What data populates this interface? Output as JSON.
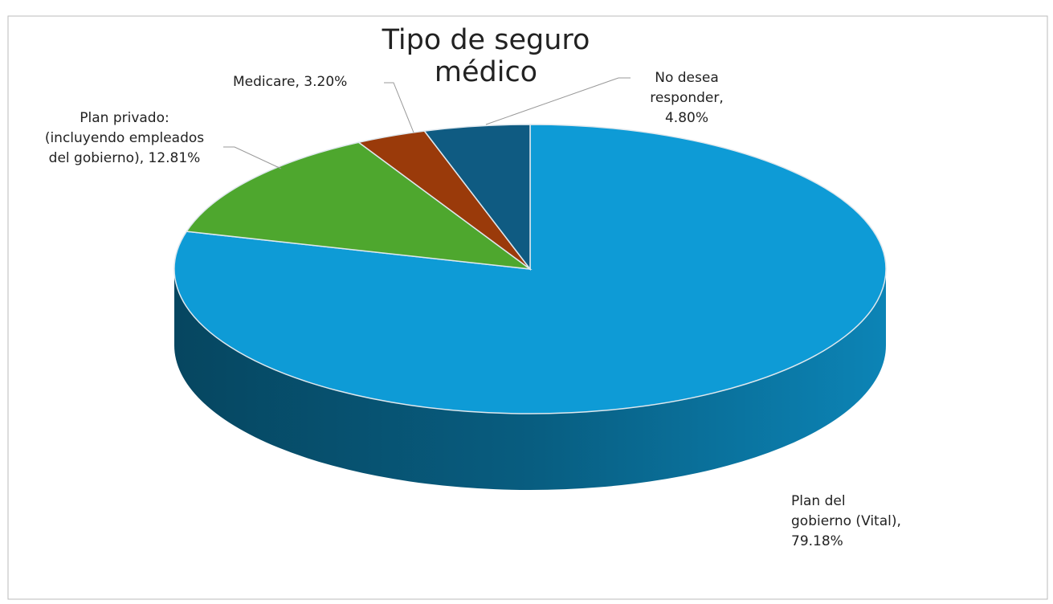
{
  "chart_data": {
    "type": "pie",
    "title": "Tipo de seguro médico",
    "categories": [
      "Plan del gobierno (Vital)",
      "Plan privado: (incluyendo empleados del gobierno)",
      "Medicare",
      "No desea responder"
    ],
    "values": [
      79.18,
      12.81,
      3.2,
      4.8
    ],
    "value_labels": [
      "79.18%",
      "12.81%",
      "3.20%",
      "4.80%"
    ],
    "colors": [
      "#0e9bd6",
      "#4ea72e",
      "#9a3a0a",
      "#0f5b82"
    ]
  }
}
